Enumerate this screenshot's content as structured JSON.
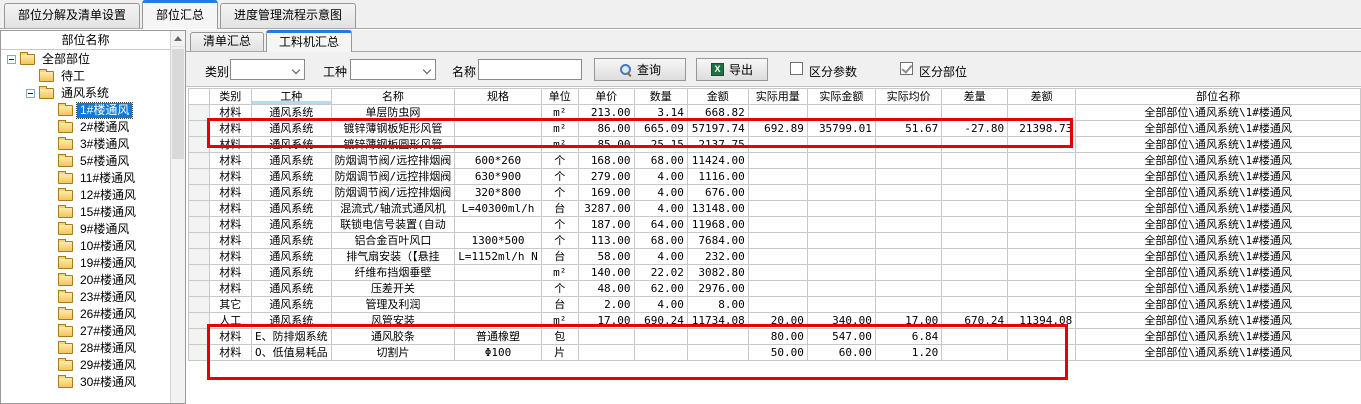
{
  "top_tabs": [
    {
      "label": "部位分解及清单设置",
      "active": false
    },
    {
      "label": "部位汇总",
      "active": true
    },
    {
      "label": "进度管理流程示意图",
      "active": false
    }
  ],
  "tree": {
    "header": "部位名称",
    "items": [
      {
        "label": "全部部位",
        "level": 0,
        "expander": true,
        "selected": false
      },
      {
        "label": "待工",
        "level": 1,
        "expander": false,
        "selected": false
      },
      {
        "label": "通风系统",
        "level": 1,
        "expander": true,
        "selected": false
      },
      {
        "label": "1#楼通风",
        "level": 2,
        "expander": false,
        "selected": true
      },
      {
        "label": "2#楼通风",
        "level": 2,
        "expander": false,
        "selected": false
      },
      {
        "label": "3#楼通风",
        "level": 2,
        "expander": false,
        "selected": false
      },
      {
        "label": "5#楼通风",
        "level": 2,
        "expander": false,
        "selected": false
      },
      {
        "label": "11#楼通风",
        "level": 2,
        "expander": false,
        "selected": false
      },
      {
        "label": "12#楼通风",
        "level": 2,
        "expander": false,
        "selected": false
      },
      {
        "label": "15#楼通风",
        "level": 2,
        "expander": false,
        "selected": false
      },
      {
        "label": "9#楼通风",
        "level": 2,
        "expander": false,
        "selected": false
      },
      {
        "label": "10#楼通风",
        "level": 2,
        "expander": false,
        "selected": false
      },
      {
        "label": "19#楼通风",
        "level": 2,
        "expander": false,
        "selected": false
      },
      {
        "label": "20#楼通风",
        "level": 2,
        "expander": false,
        "selected": false
      },
      {
        "label": "23#楼通风",
        "level": 2,
        "expander": false,
        "selected": false
      },
      {
        "label": "26#楼通风",
        "level": 2,
        "expander": false,
        "selected": false
      },
      {
        "label": "27#楼通风",
        "level": 2,
        "expander": false,
        "selected": false
      },
      {
        "label": "28#楼通风",
        "level": 2,
        "expander": false,
        "selected": false
      },
      {
        "label": "29#楼通风",
        "level": 2,
        "expander": false,
        "selected": false
      },
      {
        "label": "30#楼通风",
        "level": 2,
        "expander": false,
        "selected": false
      }
    ]
  },
  "inner_tabs": [
    {
      "label": "清单汇总",
      "active": false
    },
    {
      "label": "工料机汇总",
      "active": true
    }
  ],
  "filter": {
    "category_label": "类别",
    "category_value": "",
    "worktype_label": "工种",
    "worktype_value": "",
    "name_label": "名称",
    "name_value": "",
    "query_label": "查询",
    "export_label": "导出",
    "excel_icon_text": "X",
    "checkbox_params": {
      "label": "区分参数",
      "checked": false
    },
    "checkbox_parts": {
      "label": "区分部位",
      "checked": true
    }
  },
  "table": {
    "columns": [
      "类别",
      "工种",
      "名称",
      "规格",
      "单位",
      "单价",
      "数量",
      "金额",
      "实际用量",
      "实际金额",
      "实际均价",
      "差量",
      "差额",
      "部位名称"
    ],
    "sorted_column": "工种",
    "rows": [
      [
        "材料",
        "通风系统",
        "单层防虫网",
        "",
        "m²",
        "213.00",
        "3.14",
        "668.82",
        "",
        "",
        "",
        "",
        "",
        "全部部位\\通风系统\\1#楼通风"
      ],
      [
        "材料",
        "通风系统",
        "镀锌薄钢板矩形风管",
        "",
        "m²",
        "86.00",
        "665.09",
        "57197.74",
        "692.89",
        "35799.01",
        "51.67",
        "-27.80",
        "21398.73",
        "全部部位\\通风系统\\1#楼通风"
      ],
      [
        "材料",
        "通风系统",
        "镀锌薄钢板圆形风管",
        "",
        "m²",
        "85.00",
        "25.15",
        "2137.75",
        "",
        "",
        "",
        "",
        "",
        "全部部位\\通风系统\\1#楼通风"
      ],
      [
        "材料",
        "通风系统",
        "防烟调节阀/远控排烟阀",
        "600*260",
        "个",
        "168.00",
        "68.00",
        "11424.00",
        "",
        "",
        "",
        "",
        "",
        "全部部位\\通风系统\\1#楼通风"
      ],
      [
        "材料",
        "通风系统",
        "防烟调节阀/远控排烟阀",
        "630*900",
        "个",
        "279.00",
        "4.00",
        "1116.00",
        "",
        "",
        "",
        "",
        "",
        "全部部位\\通风系统\\1#楼通风"
      ],
      [
        "材料",
        "通风系统",
        "防烟调节阀/远控排烟阀",
        "320*800",
        "个",
        "169.00",
        "4.00",
        "676.00",
        "",
        "",
        "",
        "",
        "",
        "全部部位\\通风系统\\1#楼通风"
      ],
      [
        "材料",
        "通风系统",
        "混流式/轴流式通风机",
        "L=40300ml/h",
        "台",
        "3287.00",
        "4.00",
        "13148.00",
        "",
        "",
        "",
        "",
        "",
        "全部部位\\通风系统\\1#楼通风"
      ],
      [
        "材料",
        "通风系统",
        "联锁电信号装置(自动",
        "",
        "个",
        "187.00",
        "64.00",
        "11968.00",
        "",
        "",
        "",
        "",
        "",
        "全部部位\\通风系统\\1#楼通风"
      ],
      [
        "材料",
        "通风系统",
        "铝合金百叶风口",
        "1300*500",
        "个",
        "113.00",
        "68.00",
        "7684.00",
        "",
        "",
        "",
        "",
        "",
        "全部部位\\通风系统\\1#楼通风"
      ],
      [
        "材料",
        "通风系统",
        "排气扇安装（【悬挂",
        "L=1152ml/h N",
        "台",
        "58.00",
        "4.00",
        "232.00",
        "",
        "",
        "",
        "",
        "",
        "全部部位\\通风系统\\1#楼通风"
      ],
      [
        "材料",
        "通风系统",
        "纤维布挡烟垂壁",
        "",
        "m²",
        "140.00",
        "22.02",
        "3082.80",
        "",
        "",
        "",
        "",
        "",
        "全部部位\\通风系统\\1#楼通风"
      ],
      [
        "材料",
        "通风系统",
        "压差开关",
        "",
        "个",
        "48.00",
        "62.00",
        "2976.00",
        "",
        "",
        "",
        "",
        "",
        "全部部位\\通风系统\\1#楼通风"
      ],
      [
        "其它",
        "通风系统",
        "管理及利润",
        "",
        "台",
        "2.00",
        "4.00",
        "8.00",
        "",
        "",
        "",
        "",
        "",
        "全部部位\\通风系统\\1#楼通风"
      ],
      [
        "人工",
        "通风系统",
        "风管安装",
        "",
        "m²",
        "17.00",
        "690.24",
        "11734.08",
        "20.00",
        "340.00",
        "17.00",
        "670.24",
        "11394.08",
        "全部部位\\通风系统\\1#楼通风"
      ],
      [
        "材料",
        "E、防排烟系统",
        "通风胶条",
        "普通橡塑",
        "包",
        "",
        "",
        "",
        "80.00",
        "547.00",
        "6.84",
        "",
        "",
        "全部部位\\通风系统\\1#楼通风"
      ],
      [
        "材料",
        "O、低值易耗品",
        "切割片",
        "Φ100",
        "片",
        "",
        "",
        "",
        "50.00",
        "60.00",
        "1.20",
        "",
        "",
        "全部部位\\通风系统\\1#楼通风"
      ]
    ]
  },
  "colors": {
    "highlight_box": "#e60000",
    "selection_blue": "#0f7ad8",
    "tab_accent": "#2878e8"
  }
}
